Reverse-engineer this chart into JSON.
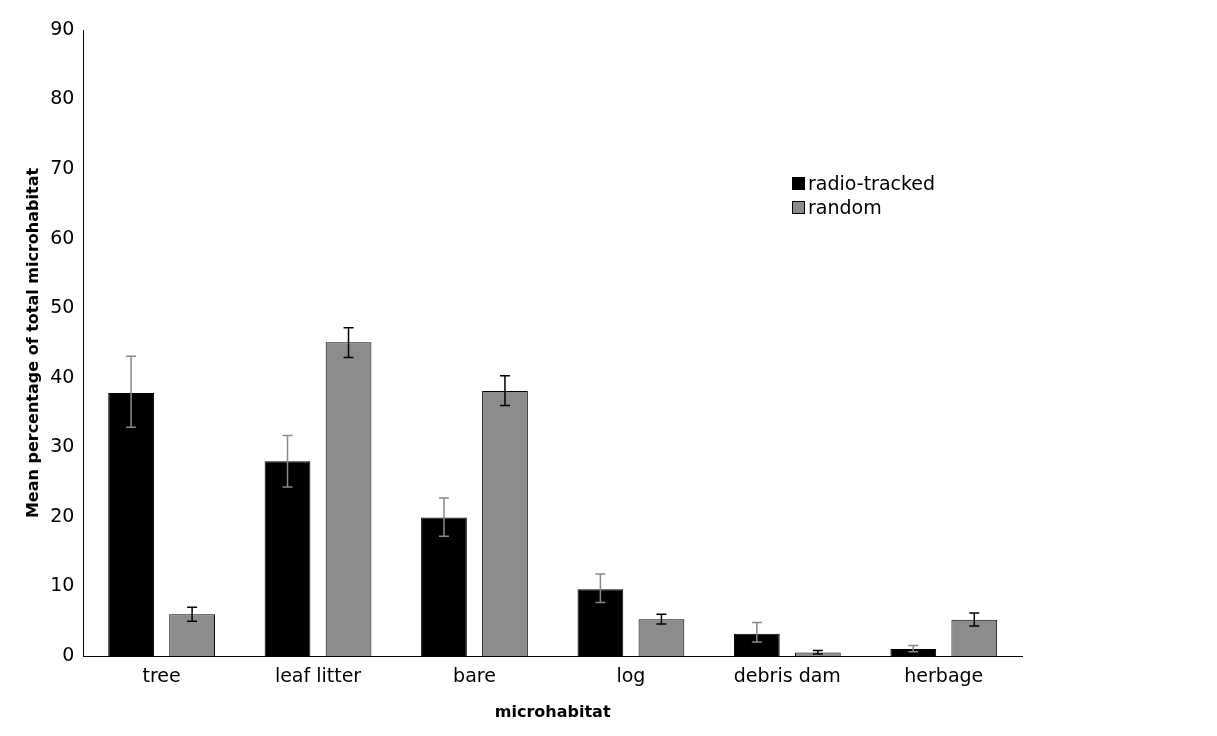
{
  "chart_data": {
    "type": "bar",
    "xlabel": "microhabitat",
    "ylabel": "Mean percentage of total microhabitat",
    "categories": [
      "tree",
      "leaf litter",
      "bare",
      "log",
      "debris dam",
      "herbage"
    ],
    "series": [
      {
        "name": "radio-tracked",
        "color": "#000000",
        "values": [
          37.8,
          28.0,
          19.9,
          9.6,
          3.2,
          1.0
        ],
        "errors": [
          [
            32.9,
            43.1
          ],
          [
            24.3,
            31.7
          ],
          [
            17.2,
            22.7
          ],
          [
            7.7,
            11.8
          ],
          [
            2.0,
            4.8
          ],
          [
            0.6,
            1.5
          ]
        ]
      },
      {
        "name": "random",
        "color": "#8c8c8c",
        "values": [
          6.0,
          45.1,
          38.1,
          5.3,
          0.5,
          5.2
        ],
        "errors": [
          [
            5.0,
            7.0
          ],
          [
            42.9,
            47.2
          ],
          [
            36.0,
            40.3
          ],
          [
            4.6,
            6.0
          ],
          [
            0.3,
            0.8
          ],
          [
            4.3,
            6.2
          ]
        ]
      }
    ],
    "ylim": [
      0,
      90
    ],
    "yticks": [
      0,
      10,
      20,
      30,
      40,
      50,
      60,
      70,
      80,
      90
    ],
    "grid": false,
    "legend": "right"
  }
}
